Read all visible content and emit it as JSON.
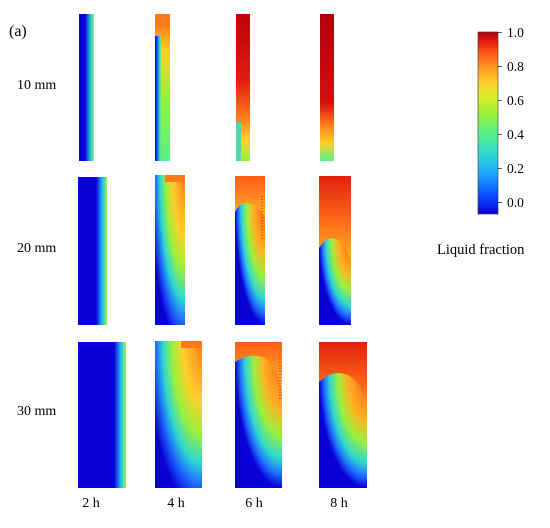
{
  "figure": {
    "panel_label": "(a)",
    "rows": [
      {
        "label": "10 mm"
      },
      {
        "label": "20 mm"
      },
      {
        "label": "30 mm"
      }
    ],
    "columns": [
      {
        "label": "2 h"
      },
      {
        "label": "4 h"
      },
      {
        "label": "6 h"
      },
      {
        "label": "8 h"
      }
    ],
    "colorbar": {
      "title": "Liquid fraction",
      "ticks": [
        "1.0",
        "0.8",
        "0.6",
        "0.4",
        "0.2",
        "0.0"
      ],
      "colors": [
        "#0a00d6",
        "#0a4cff",
        "#1ea6ff",
        "#2fd8d0",
        "#56f08a",
        "#9af03c",
        "#d8ec2a",
        "#ffcf2a",
        "#ff9a22",
        "#ff5c16",
        "#e01c10",
        "#b0000c"
      ]
    }
  }
}
